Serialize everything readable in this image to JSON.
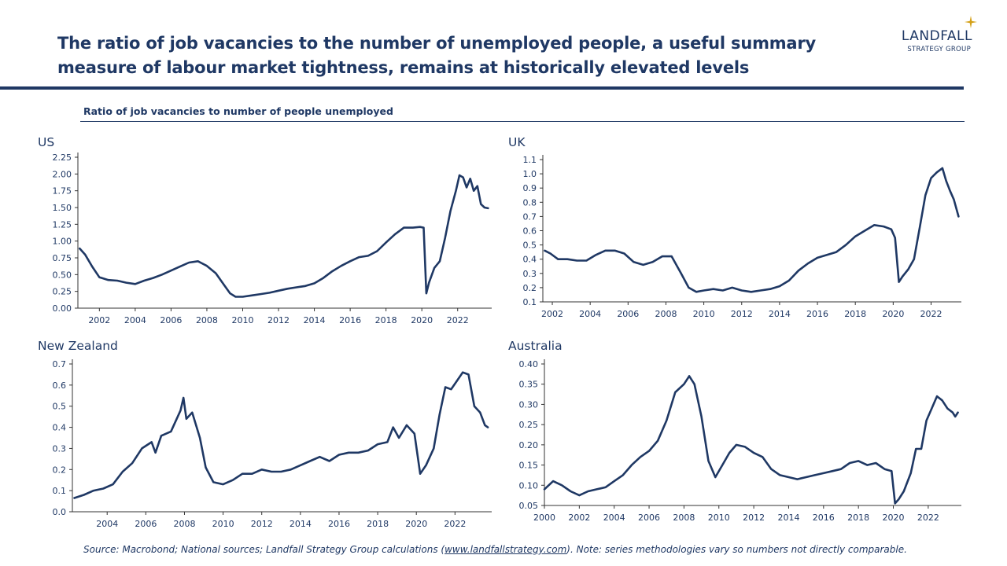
{
  "header": {
    "title_line1": "The ratio of job vacancies to the number of unemployed people, a useful summary",
    "title_line2": "measure of labour market tightness, remains at historically elevated levels",
    "logo_name": "LANDFALL",
    "logo_sub": "STRATEGY GROUP",
    "colors": {
      "brand": "#1f3864",
      "accent": "#d4a017"
    }
  },
  "subtitle": "Ratio of job vacancies to number of people unemployed",
  "footer": {
    "source_prefix": "Source: Macrobond; National sources; Landfall Strategy Group calculations (",
    "source_link": "www.landfallstrategy.com",
    "source_suffix": ").  Note: series methodologies vary so numbers not directly comparable."
  },
  "chart_data": [
    {
      "id": "us",
      "title": "US",
      "type": "line",
      "ylim": [
        0,
        2.25
      ],
      "yticks": [
        0,
        0.25,
        0.5,
        0.75,
        1.0,
        1.25,
        1.5,
        1.75,
        2.0,
        2.25
      ],
      "ydecimals": 2,
      "xlim": [
        2000.8,
        2023.9
      ],
      "xticks": [
        2002,
        2004,
        2006,
        2008,
        2010,
        2012,
        2014,
        2016,
        2018,
        2020,
        2022
      ],
      "x": [
        2000.9,
        2001.2,
        2001.6,
        2002.0,
        2002.5,
        2003.0,
        2003.5,
        2004.0,
        2004.5,
        2005.0,
        2005.5,
        2006.0,
        2006.5,
        2007.0,
        2007.5,
        2008.0,
        2008.5,
        2009.0,
        2009.3,
        2009.6,
        2010.0,
        2010.5,
        2011.0,
        2011.5,
        2012.0,
        2012.5,
        2013.0,
        2013.5,
        2014.0,
        2014.5,
        2015.0,
        2015.5,
        2016.0,
        2016.5,
        2017.0,
        2017.5,
        2018.0,
        2018.5,
        2019.0,
        2019.5,
        2019.9,
        2020.1,
        2020.25,
        2020.4,
        2020.7,
        2021.0,
        2021.3,
        2021.6,
        2021.9,
        2022.1,
        2022.3,
        2022.5,
        2022.7,
        2022.9,
        2023.1,
        2023.3,
        2023.5,
        2023.7
      ],
      "y": [
        0.89,
        0.8,
        0.62,
        0.46,
        0.42,
        0.41,
        0.38,
        0.36,
        0.41,
        0.45,
        0.5,
        0.56,
        0.62,
        0.68,
        0.7,
        0.63,
        0.52,
        0.33,
        0.22,
        0.17,
        0.17,
        0.19,
        0.21,
        0.23,
        0.26,
        0.29,
        0.31,
        0.33,
        0.37,
        0.45,
        0.55,
        0.63,
        0.7,
        0.76,
        0.78,
        0.85,
        0.98,
        1.1,
        1.2,
        1.2,
        1.21,
        1.2,
        0.22,
        0.38,
        0.6,
        0.7,
        1.05,
        1.45,
        1.75,
        1.98,
        1.95,
        1.8,
        1.93,
        1.75,
        1.82,
        1.55,
        1.5,
        1.49
      ]
    },
    {
      "id": "uk",
      "title": "UK",
      "type": "line",
      "ylim": [
        0.1,
        1.1
      ],
      "yticks": [
        0.1,
        0.2,
        0.3,
        0.4,
        0.5,
        0.6,
        0.7,
        0.8,
        0.9,
        1.0,
        1.1
      ],
      "ydecimals": 1,
      "xlim": [
        2001.5,
        2023.6
      ],
      "xticks": [
        2002,
        2004,
        2006,
        2008,
        2010,
        2012,
        2014,
        2016,
        2018,
        2020,
        2022
      ],
      "x": [
        2001.6,
        2001.9,
        2002.3,
        2002.8,
        2003.3,
        2003.8,
        2004.3,
        2004.8,
        2005.3,
        2005.8,
        2006.3,
        2006.8,
        2007.3,
        2007.8,
        2008.3,
        2008.8,
        2009.2,
        2009.6,
        2010.0,
        2010.5,
        2011.0,
        2011.5,
        2012.0,
        2012.5,
        2013.0,
        2013.5,
        2014.0,
        2014.5,
        2015.0,
        2015.5,
        2016.0,
        2016.5,
        2017.0,
        2017.5,
        2018.0,
        2018.5,
        2019.0,
        2019.5,
        2019.9,
        2020.1,
        2020.3,
        2020.5,
        2020.8,
        2021.1,
        2021.4,
        2021.7,
        2022.0,
        2022.3,
        2022.6,
        2022.8,
        2023.0,
        2023.2,
        2023.45
      ],
      "y": [
        0.46,
        0.44,
        0.4,
        0.4,
        0.39,
        0.39,
        0.43,
        0.46,
        0.46,
        0.44,
        0.38,
        0.36,
        0.38,
        0.42,
        0.42,
        0.3,
        0.2,
        0.17,
        0.18,
        0.19,
        0.18,
        0.2,
        0.18,
        0.17,
        0.18,
        0.19,
        0.21,
        0.25,
        0.32,
        0.37,
        0.41,
        0.43,
        0.45,
        0.5,
        0.56,
        0.6,
        0.64,
        0.63,
        0.61,
        0.55,
        0.24,
        0.28,
        0.33,
        0.4,
        0.62,
        0.85,
        0.97,
        1.01,
        1.04,
        0.95,
        0.88,
        0.82,
        0.7
      ]
    },
    {
      "id": "nz",
      "title": "New Zealand",
      "type": "line",
      "ylim": [
        0,
        0.7
      ],
      "yticks": [
        0.0,
        0.1,
        0.2,
        0.3,
        0.4,
        0.5,
        0.6,
        0.7
      ],
      "ydecimals": 1,
      "xlim": [
        2002.2,
        2023.9
      ],
      "xticks": [
        2004,
        2006,
        2008,
        2010,
        2012,
        2014,
        2016,
        2018,
        2020,
        2022
      ],
      "x": [
        2002.3,
        2002.8,
        2003.3,
        2003.8,
        2004.3,
        2004.8,
        2005.3,
        2005.8,
        2006.3,
        2006.5,
        2006.8,
        2007.3,
        2007.8,
        2007.95,
        2008.1,
        2008.4,
        2008.8,
        2009.1,
        2009.5,
        2010.0,
        2010.5,
        2011.0,
        2011.5,
        2012.0,
        2012.5,
        2013.0,
        2013.5,
        2014.0,
        2014.5,
        2015.0,
        2015.5,
        2016.0,
        2016.5,
        2017.0,
        2017.5,
        2018.0,
        2018.5,
        2018.8,
        2019.1,
        2019.5,
        2019.9,
        2020.2,
        2020.5,
        2020.9,
        2021.2,
        2021.5,
        2021.8,
        2022.1,
        2022.4,
        2022.7,
        2023.0,
        2023.3,
        2023.55,
        2023.7
      ],
      "y": [
        0.065,
        0.08,
        0.1,
        0.11,
        0.13,
        0.19,
        0.23,
        0.3,
        0.33,
        0.28,
        0.36,
        0.38,
        0.48,
        0.54,
        0.44,
        0.47,
        0.35,
        0.21,
        0.14,
        0.13,
        0.15,
        0.18,
        0.18,
        0.2,
        0.19,
        0.19,
        0.2,
        0.22,
        0.24,
        0.26,
        0.24,
        0.27,
        0.28,
        0.28,
        0.29,
        0.32,
        0.33,
        0.4,
        0.35,
        0.41,
        0.37,
        0.18,
        0.22,
        0.3,
        0.46,
        0.59,
        0.58,
        0.62,
        0.66,
        0.65,
        0.5,
        0.47,
        0.41,
        0.4
      ]
    },
    {
      "id": "au",
      "title": "Australia",
      "type": "line",
      "ylim": [
        0.05,
        0.4
      ],
      "yticks": [
        0.05,
        0.1,
        0.15,
        0.2,
        0.25,
        0.3,
        0.35,
        0.4
      ],
      "ydecimals": 2,
      "xlim": [
        2000,
        2023.9
      ],
      "xticks": [
        2000,
        2002,
        2004,
        2006,
        2008,
        2010,
        2012,
        2014,
        2016,
        2018,
        2020,
        2022
      ],
      "x": [
        2000.0,
        2000.5,
        2001.0,
        2001.5,
        2002.0,
        2002.5,
        2003.0,
        2003.5,
        2004.0,
        2004.5,
        2005.0,
        2005.5,
        2006.0,
        2006.5,
        2007.0,
        2007.5,
        2008.0,
        2008.3,
        2008.6,
        2009.0,
        2009.4,
        2009.8,
        2010.2,
        2010.6,
        2011.0,
        2011.5,
        2012.0,
        2012.5,
        2013.0,
        2013.5,
        2014.0,
        2014.5,
        2015.0,
        2015.5,
        2016.0,
        2016.5,
        2017.0,
        2017.5,
        2018.0,
        2018.5,
        2019.0,
        2019.5,
        2019.9,
        2020.1,
        2020.3,
        2020.6,
        2021.0,
        2021.3,
        2021.6,
        2021.9,
        2022.2,
        2022.5,
        2022.8,
        2023.1,
        2023.4,
        2023.55,
        2023.7
      ],
      "y": [
        0.09,
        0.11,
        0.1,
        0.085,
        0.075,
        0.085,
        0.09,
        0.095,
        0.11,
        0.125,
        0.15,
        0.17,
        0.185,
        0.21,
        0.26,
        0.33,
        0.35,
        0.37,
        0.35,
        0.27,
        0.16,
        0.12,
        0.15,
        0.18,
        0.2,
        0.195,
        0.18,
        0.17,
        0.14,
        0.125,
        0.12,
        0.115,
        0.12,
        0.125,
        0.13,
        0.135,
        0.14,
        0.155,
        0.16,
        0.15,
        0.155,
        0.14,
        0.135,
        0.055,
        0.065,
        0.085,
        0.13,
        0.19,
        0.19,
        0.26,
        0.29,
        0.32,
        0.31,
        0.29,
        0.28,
        0.27,
        0.28
      ]
    }
  ]
}
